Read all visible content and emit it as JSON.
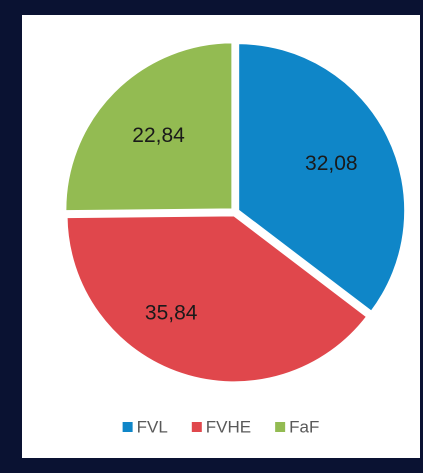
{
  "chart_data": {
    "type": "pie",
    "categories": [
      "FVL",
      "FVHE",
      "FaF"
    ],
    "values": [
      32.08,
      35.84,
      22.84
    ],
    "value_labels": [
      "32,08",
      "35,84",
      "22,84"
    ],
    "colors": [
      "#0f86c8",
      "#e0474c",
      "#93bb52"
    ],
    "legend": "bottom"
  }
}
